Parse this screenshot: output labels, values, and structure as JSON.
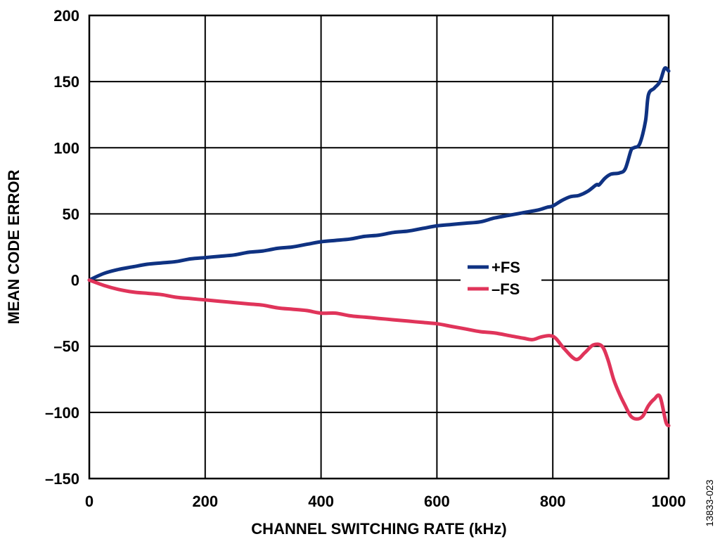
{
  "figure_id": "13833-023",
  "chart_data": {
    "type": "line",
    "xlabel": "CHANNEL SWITCHING RATE (kHz)",
    "ylabel": "MEAN CODE ERROR",
    "xlim": [
      0,
      1000
    ],
    "ylim": [
      -150,
      200
    ],
    "x_ticks": [
      0,
      200,
      400,
      600,
      800,
      1000
    ],
    "y_ticks": [
      200,
      150,
      100,
      50,
      0,
      -50,
      -100,
      -150
    ],
    "x_tick_labels": [
      "0",
      "200",
      "400",
      "600",
      "800",
      "1000"
    ],
    "y_tick_labels": [
      "200",
      "150",
      "100",
      "50",
      "0",
      "–50",
      "–100",
      "–150"
    ],
    "grid": true,
    "legend_position": "center-right",
    "series": [
      {
        "name": "+FS",
        "color": "#0f3282",
        "x": [
          0,
          25,
          50,
          75,
          100,
          125,
          150,
          175,
          200,
          225,
          250,
          275,
          300,
          325,
          350,
          375,
          400,
          425,
          450,
          475,
          500,
          525,
          550,
          575,
          600,
          625,
          650,
          675,
          700,
          725,
          750,
          775,
          790,
          800,
          815,
          830,
          845,
          860,
          875,
          880,
          890,
          900,
          915,
          925,
          935,
          940,
          950,
          960,
          965,
          975,
          985,
          993,
          1000
        ],
        "y": [
          0,
          5,
          8,
          10,
          12,
          13,
          14,
          16,
          17,
          18,
          19,
          21,
          22,
          24,
          25,
          27,
          29,
          30,
          31,
          33,
          34,
          36,
          37,
          39,
          41,
          42,
          43,
          44,
          47,
          49,
          51,
          53,
          55,
          56,
          60,
          63,
          64,
          67,
          72,
          72,
          77,
          80,
          81,
          84,
          98,
          100,
          103,
          120,
          140,
          145,
          150,
          160,
          158
        ]
      },
      {
        "name": "–FS",
        "color": "#e0345a",
        "x": [
          0,
          25,
          50,
          75,
          100,
          125,
          150,
          175,
          200,
          225,
          250,
          275,
          300,
          325,
          350,
          375,
          400,
          425,
          450,
          475,
          500,
          525,
          550,
          575,
          600,
          625,
          650,
          675,
          700,
          725,
          750,
          765,
          780,
          795,
          805,
          820,
          840,
          855,
          870,
          885,
          895,
          905,
          915,
          925,
          935,
          945,
          955,
          965,
          975,
          985,
          995,
          1000
        ],
        "y": [
          0,
          -4,
          -7,
          -9,
          -10,
          -11,
          -13,
          -14,
          -15,
          -16,
          -17,
          -18,
          -19,
          -21,
          -22,
          -23,
          -25,
          -25,
          -27,
          -28,
          -29,
          -30,
          -31,
          -32,
          -33,
          -35,
          -37,
          -39,
          -40,
          -42,
          -44,
          -45,
          -43,
          -42,
          -44,
          -52,
          -60,
          -55,
          -49,
          -50,
          -60,
          -75,
          -86,
          -95,
          -103,
          -105,
          -103,
          -95,
          -90,
          -88,
          -107,
          -110
        ]
      }
    ]
  }
}
